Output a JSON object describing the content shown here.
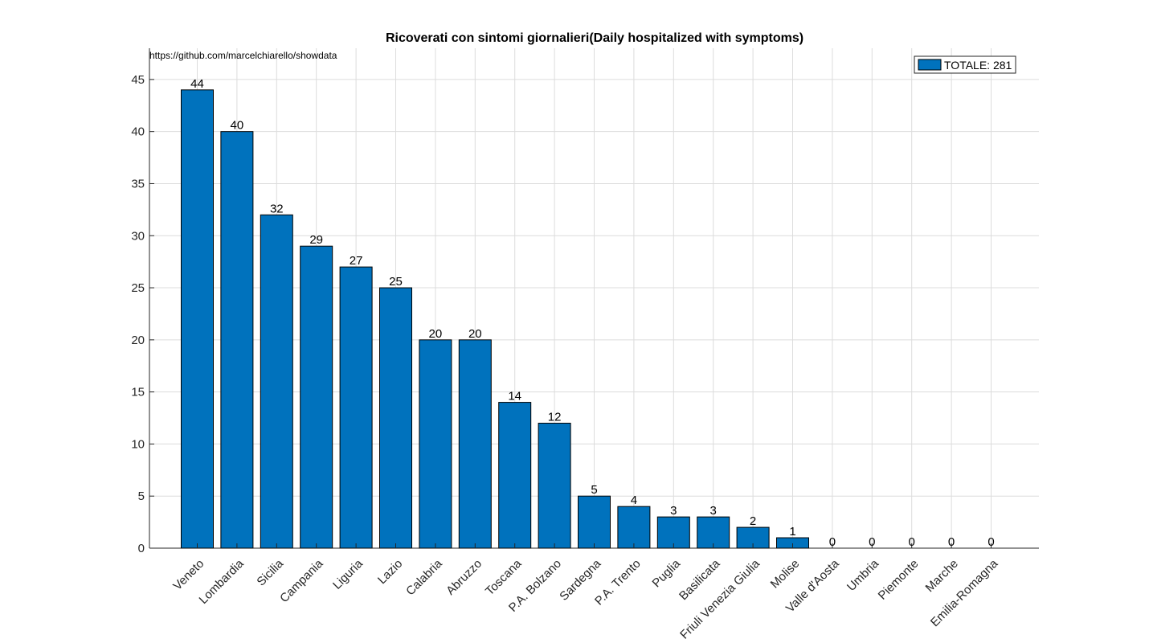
{
  "chart_data": {
    "type": "bar",
    "title": "Ricoverati con sintomi giornalieri(Daily hospitalized with symptoms)",
    "source": "https://github.com/marcelchiarello/showdata",
    "categories": [
      "Veneto",
      "Lombardia",
      "Sicilia",
      "Campania",
      "Liguria",
      "Lazio",
      "Calabria",
      "Abruzzo",
      "Toscana",
      "P.A. Bolzano",
      "Sardegna",
      "P.A. Trento",
      "Puglia",
      "Basilicata",
      "Friuli Venezia Giulia",
      "Molise",
      "Valle d'Aosta",
      "Umbria",
      "Piemonte",
      "Marche",
      "Emilia-Romagna"
    ],
    "values": [
      44,
      40,
      32,
      29,
      27,
      25,
      20,
      20,
      14,
      12,
      5,
      4,
      3,
      3,
      2,
      1,
      0,
      0,
      0,
      0,
      0
    ],
    "data_labels": [
      "44",
      "40",
      "32",
      "29",
      "27",
      "25",
      "20",
      "20",
      "14",
      "12",
      "5",
      "4",
      "3",
      "3",
      "2",
      "1",
      "0",
      "0",
      "0",
      "0",
      "0"
    ],
    "ylim": [
      0,
      48
    ],
    "yticks": [
      0,
      5,
      10,
      15,
      20,
      25,
      30,
      35,
      40,
      45
    ],
    "ytick_labels": [
      "0",
      "5",
      "10",
      "15",
      "20",
      "25",
      "30",
      "35",
      "40",
      "45"
    ],
    "grid": true,
    "bar_color": "#0072BD",
    "legend": {
      "position": "top-right",
      "label": "TOTALE: 281"
    }
  }
}
